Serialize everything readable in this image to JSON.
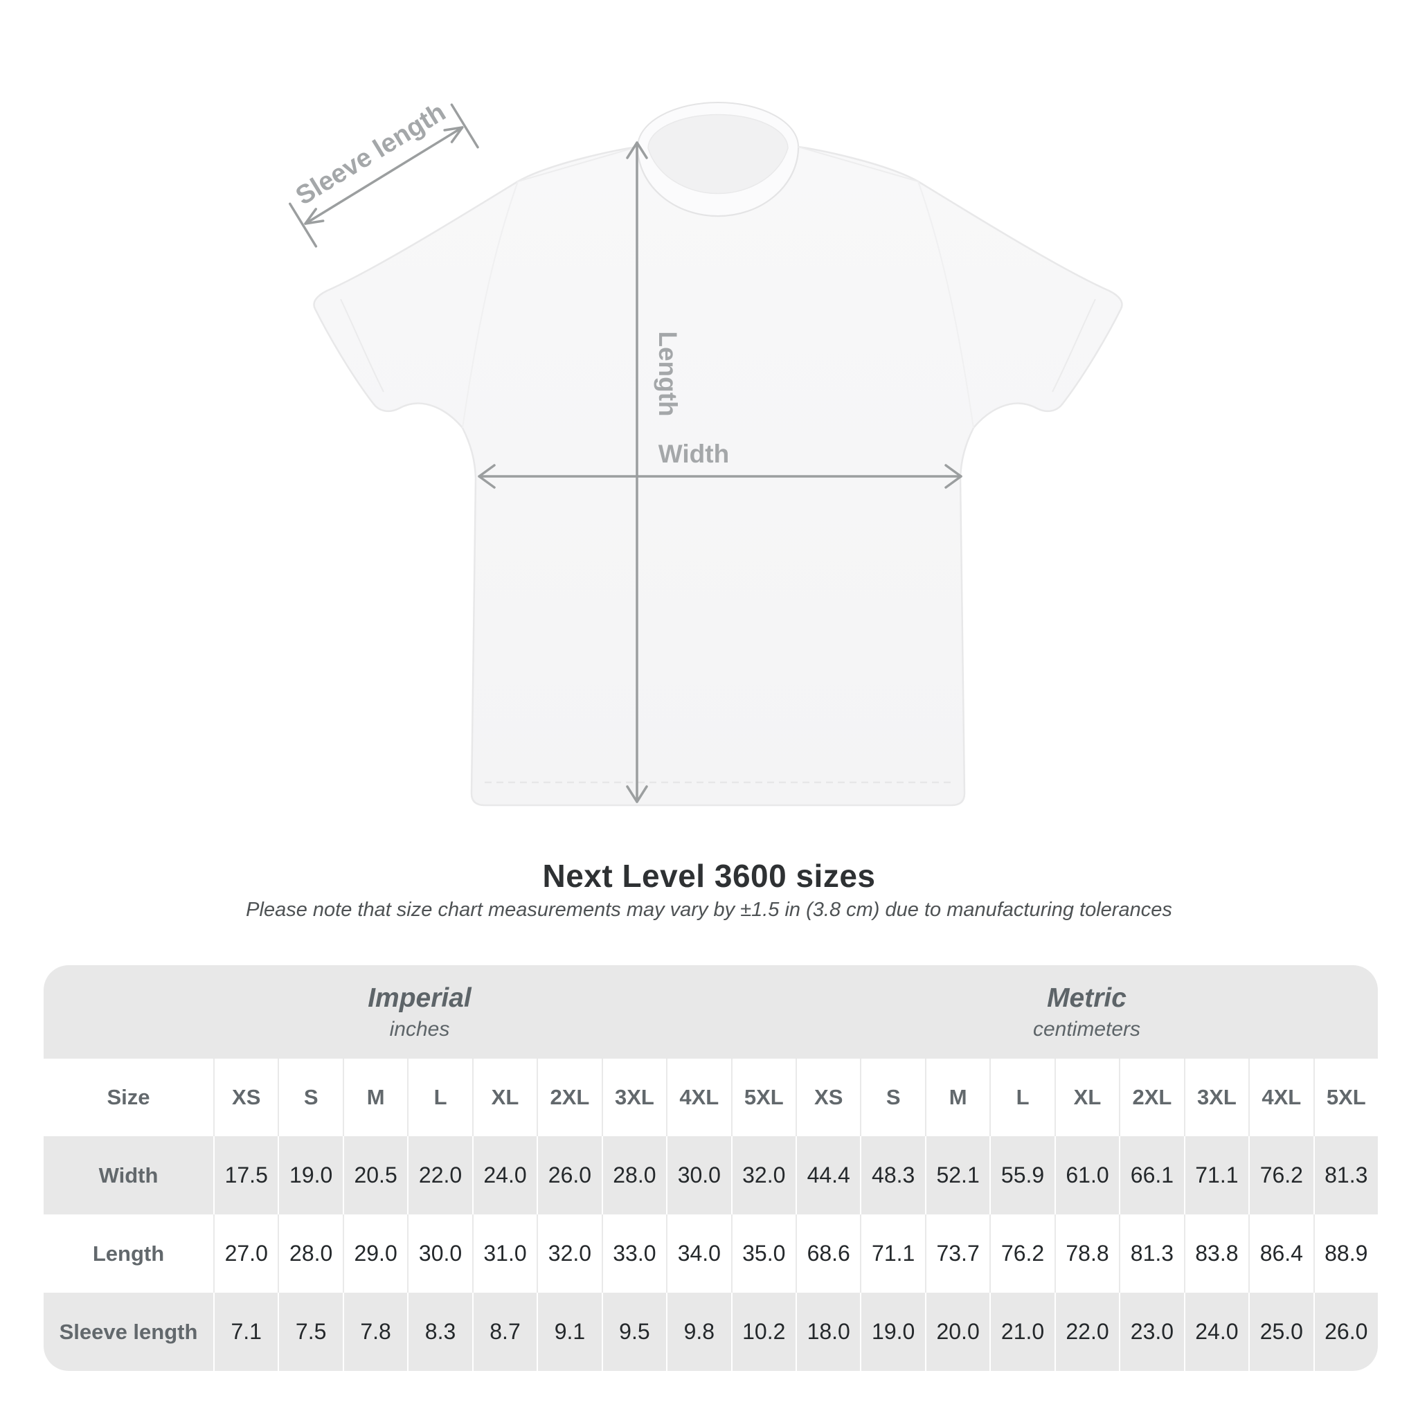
{
  "title": "Next Level 3600 sizes",
  "subtitle": "Please note that size chart measurements may vary by ±1.5 in (3.8 cm) due to manufacturing tolerances",
  "diagram": {
    "labels": {
      "sleeve_length": "Sleeve length",
      "length": "Length",
      "width": "Width"
    }
  },
  "colors": {
    "arrow_gray": "#9b9e9f",
    "diagram_label_gray": "#a4a7a9",
    "table_band_gray": "#e8e8e8",
    "header_text": "#62686c",
    "value_text": "#24282b"
  },
  "chart_data": {
    "type": "table",
    "title": "Next Level 3600 sizes",
    "subtitle": "Please note that size chart measurements may vary by ±1.5 in (3.8 cm) due to manufacturing tolerances",
    "unit_groups": [
      {
        "label": "Imperial",
        "sublabel": "inches"
      },
      {
        "label": "Metric",
        "sublabel": "centimeters"
      }
    ],
    "corner_label": "Size",
    "sizes": [
      "XS",
      "S",
      "M",
      "L",
      "XL",
      "2XL",
      "3XL",
      "4XL",
      "5XL"
    ],
    "rows": [
      {
        "label": "Width",
        "imperial": [
          "17.5",
          "19.0",
          "20.5",
          "22.0",
          "24.0",
          "26.0",
          "28.0",
          "30.0",
          "32.0"
        ],
        "metric": [
          "44.4",
          "48.3",
          "52.1",
          "55.9",
          "61.0",
          "66.1",
          "71.1",
          "76.2",
          "81.3"
        ]
      },
      {
        "label": "Length",
        "imperial": [
          "27.0",
          "28.0",
          "29.0",
          "30.0",
          "31.0",
          "32.0",
          "33.0",
          "34.0",
          "35.0"
        ],
        "metric": [
          "68.6",
          "71.1",
          "73.7",
          "76.2",
          "78.8",
          "81.3",
          "83.8",
          "86.4",
          "88.9"
        ]
      },
      {
        "label": "Sleeve length",
        "imperial": [
          "7.1",
          "7.5",
          "7.8",
          "8.3",
          "8.7",
          "9.1",
          "9.5",
          "9.8",
          "10.2"
        ],
        "metric": [
          "18.0",
          "19.0",
          "20.0",
          "21.0",
          "22.0",
          "23.0",
          "24.0",
          "25.0",
          "26.0"
        ]
      }
    ]
  }
}
